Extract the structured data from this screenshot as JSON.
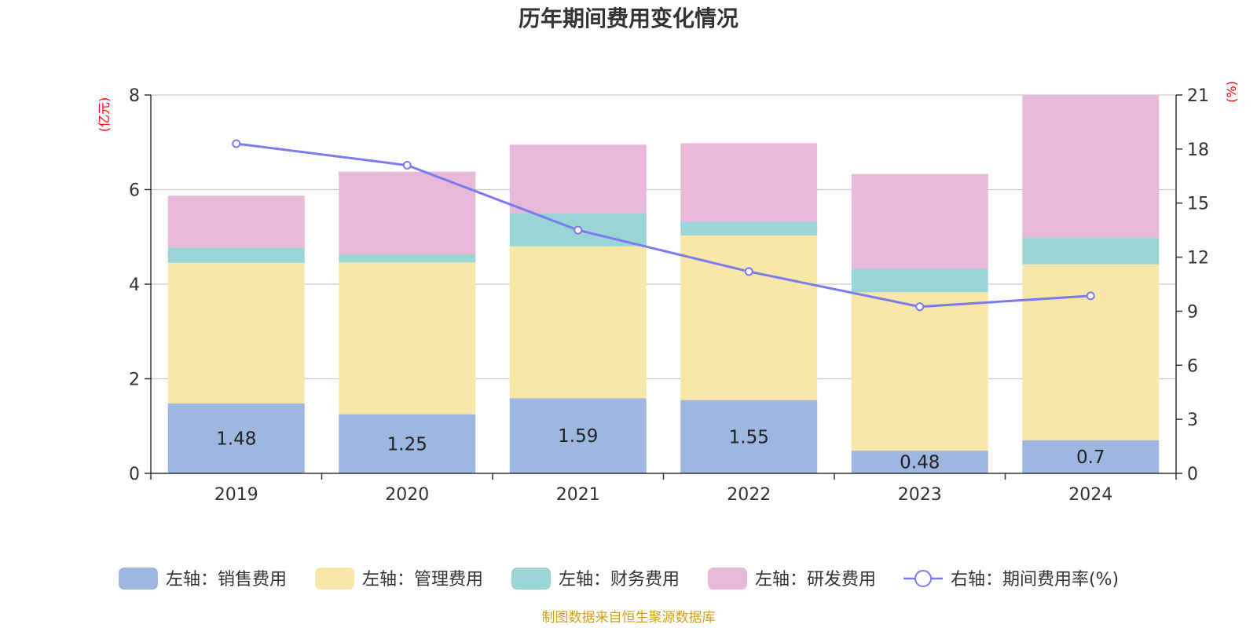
{
  "chart_data": {
    "type": "bar",
    "stacked": true,
    "title": "历年期间费用变化情况",
    "categories": [
      "2019",
      "2020",
      "2021",
      "2022",
      "2023",
      "2024"
    ],
    "left_axis": {
      "unit": "(亿元)",
      "ylim": [
        0,
        8
      ],
      "ticks": [
        "0",
        "2",
        "4",
        "6",
        "8"
      ]
    },
    "right_axis": {
      "unit": "(%)",
      "ylim": [
        0,
        21
      ],
      "ticks": [
        "0",
        "3",
        "6",
        "9",
        "12",
        "15",
        "18",
        "21"
      ]
    },
    "series": [
      {
        "name": "左轴：销售费用",
        "axis": "left",
        "type": "bar",
        "color": "#9db7e0",
        "values": [
          1.48,
          1.25,
          1.59,
          1.55,
          0.48,
          0.7
        ],
        "labels": [
          "1.48",
          "1.25",
          "1.59",
          "1.55",
          "0.48",
          "0.7"
        ]
      },
      {
        "name": "左轴：管理费用",
        "axis": "left",
        "type": "bar",
        "color": "#f8e7a8",
        "values": [
          2.97,
          3.21,
          3.21,
          3.48,
          3.35,
          3.72
        ]
      },
      {
        "name": "左轴：财务费用",
        "axis": "left",
        "type": "bar",
        "color": "#98d5d4",
        "values": [
          0.32,
          0.17,
          0.7,
          0.29,
          0.5,
          0.57
        ]
      },
      {
        "name": "左轴：研发费用",
        "axis": "left",
        "type": "bar",
        "color": "#e7b8d8",
        "values": [
          1.1,
          1.75,
          1.45,
          1.66,
          2.0,
          3.01
        ]
      },
      {
        "name": "右轴：期间费用率(%)",
        "axis": "right",
        "type": "line",
        "color": "#7b7bef",
        "values": [
          18.3,
          17.1,
          13.5,
          11.2,
          9.25,
          9.85
        ]
      }
    ],
    "grid": true,
    "legend_position": "bottom"
  },
  "source_note": "制图数据来自恒生聚源数据库"
}
